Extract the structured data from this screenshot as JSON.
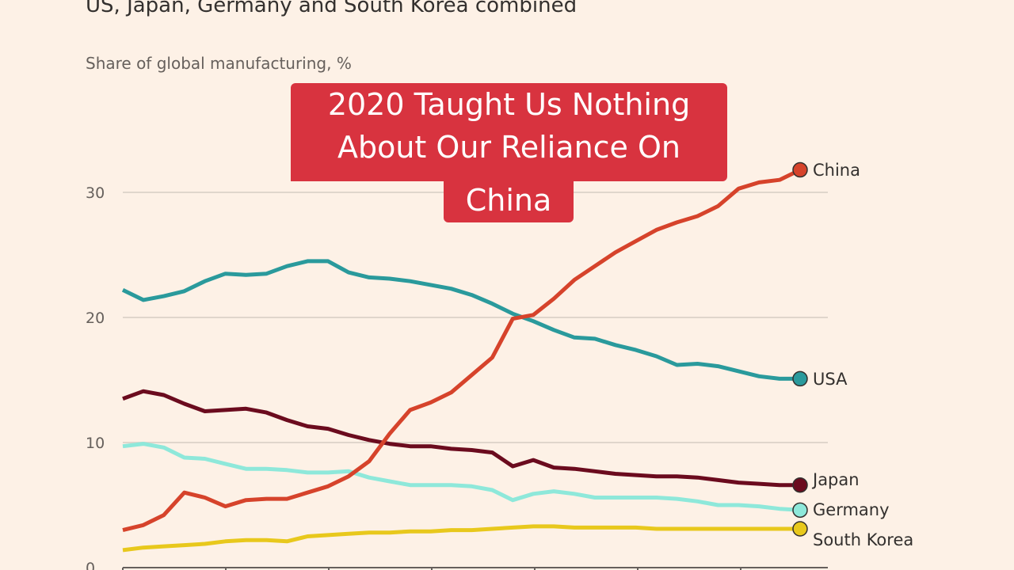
{
  "chart_data": {
    "type": "line",
    "title": "US, Japan, Germany and South Korea combined",
    "ylabel": "Share of global manufacturing, %",
    "ylim": [
      0,
      35
    ],
    "yticks": [
      0,
      10,
      20,
      30
    ],
    "grid": true,
    "legend": "end-of-line labels",
    "series": [
      {
        "name": "China",
        "color": "#d6432b",
        "values": [
          3.0,
          3.4,
          4.2,
          6.0,
          5.6,
          4.9,
          5.4,
          5.5,
          5.5,
          6.0,
          6.5,
          7.3,
          8.5,
          10.7,
          12.6,
          13.2,
          14.0,
          15.4,
          16.8,
          19.9,
          20.2,
          21.5,
          23.0,
          24.1,
          25.2,
          26.1,
          27.0,
          27.6,
          28.1,
          28.9,
          30.3,
          30.8,
          31.0,
          31.8
        ]
      },
      {
        "name": "USA",
        "color": "#2a9a9c",
        "values": [
          22.2,
          21.4,
          21.7,
          22.1,
          22.9,
          23.5,
          23.4,
          23.5,
          24.1,
          24.5,
          24.5,
          23.6,
          23.2,
          23.1,
          22.9,
          22.6,
          22.3,
          21.8,
          21.1,
          20.3,
          19.7,
          19.0,
          18.4,
          18.3,
          17.8,
          17.4,
          16.9,
          16.2,
          16.3,
          16.1,
          15.7,
          15.3,
          15.1,
          15.1
        ]
      },
      {
        "name": "Japan",
        "color": "#6b0b1e",
        "values": [
          13.5,
          14.1,
          13.8,
          13.1,
          12.5,
          12.6,
          12.7,
          12.4,
          11.8,
          11.3,
          11.1,
          10.6,
          10.2,
          9.9,
          9.7,
          9.7,
          9.5,
          9.4,
          9.2,
          8.1,
          8.6,
          8.0,
          7.9,
          7.7,
          7.5,
          7.4,
          7.3,
          7.3,
          7.2,
          7.0,
          6.8,
          6.7,
          6.6,
          6.6
        ]
      },
      {
        "name": "Germany",
        "color": "#8ee8da",
        "values": [
          9.7,
          9.9,
          9.6,
          8.8,
          8.7,
          8.3,
          7.9,
          7.9,
          7.8,
          7.6,
          7.6,
          7.7,
          7.2,
          6.9,
          6.6,
          6.6,
          6.6,
          6.5,
          6.2,
          5.4,
          5.9,
          6.1,
          5.9,
          5.6,
          5.6,
          5.6,
          5.6,
          5.5,
          5.3,
          5.0,
          5.0,
          4.9,
          4.7,
          4.6
        ]
      },
      {
        "name": "South Korea",
        "color": "#e8c81c",
        "values": [
          1.4,
          1.6,
          1.7,
          1.8,
          1.9,
          2.1,
          2.2,
          2.2,
          2.1,
          2.5,
          2.6,
          2.7,
          2.8,
          2.8,
          2.9,
          2.9,
          3.0,
          3.0,
          3.1,
          3.2,
          3.3,
          3.3,
          3.2,
          3.2,
          3.2,
          3.2,
          3.1,
          3.1,
          3.1,
          3.1,
          3.1,
          3.1,
          3.1,
          3.1
        ]
      }
    ]
  },
  "overlay": {
    "line1": "2020 Taught Us Nothing",
    "line2": "About Our Reliance On",
    "line3": "China",
    "color": "#d8333f"
  }
}
